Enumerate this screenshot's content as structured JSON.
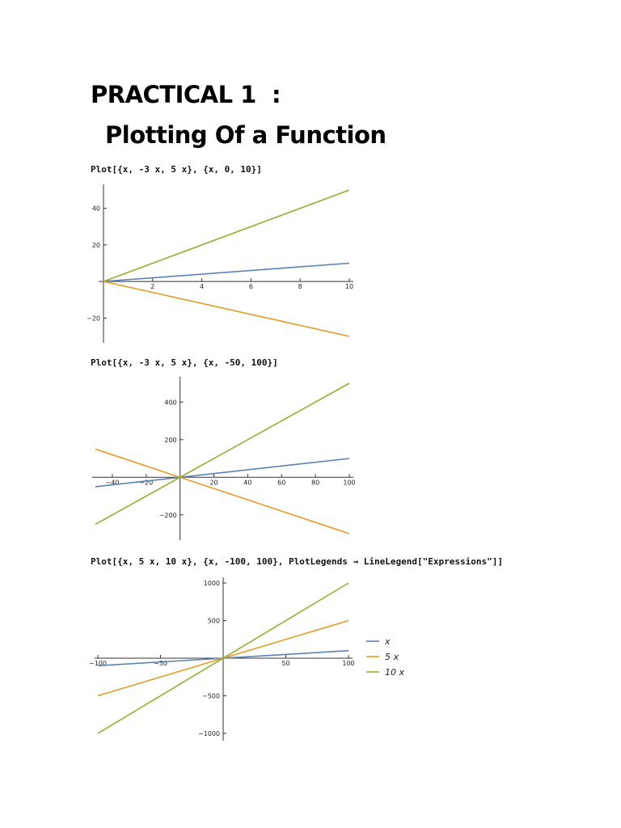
{
  "heading": {
    "line1": "PRACTICAL 1  :",
    "line2": "Plotting Of a Function"
  },
  "plots": [
    {
      "code": "Plot[{x, -3 x, 5 x}, {x, 0, 10}]"
    },
    {
      "code": "Plot[{x, -3 x, 5 x}, {x, -50, 100}]"
    },
    {
      "code": "Plot[{x, 5 x, 10 x}, {x, -100, 100}, PlotLegends → LineLegend[\"Expressions\"]]"
    }
  ],
  "colors": {
    "blue": "#5e81b5",
    "orange": "#e19c24",
    "green": "#8fb032",
    "axis": "#333333"
  },
  "chart_data": [
    {
      "type": "line",
      "title": "",
      "xlim": [
        0,
        10
      ],
      "ylim": [
        -30,
        50
      ],
      "xticks": [
        2,
        4,
        6,
        8,
        10
      ],
      "yticks": [
        -20,
        20,
        40
      ],
      "series": [
        {
          "expr": "x",
          "color": "#5e81b5",
          "points": [
            [
              0,
              0
            ],
            [
              10,
              10
            ]
          ]
        },
        {
          "expr": "-3 x",
          "color": "#e19c24",
          "points": [
            [
              0,
              0
            ],
            [
              10,
              -30
            ]
          ]
        },
        {
          "expr": "5 x",
          "color": "#8fb032",
          "points": [
            [
              0,
              0
            ],
            [
              10,
              50
            ]
          ]
        }
      ]
    },
    {
      "type": "line",
      "title": "",
      "xlim": [
        -50,
        100
      ],
      "ylim": [
        -300,
        500
      ],
      "xticks": [
        -40,
        -20,
        20,
        40,
        60,
        80,
        100
      ],
      "yticks": [
        -200,
        200,
        400
      ],
      "series": [
        {
          "expr": "x",
          "color": "#5e81b5",
          "points": [
            [
              -50,
              -50
            ],
            [
              100,
              100
            ]
          ]
        },
        {
          "expr": "-3 x",
          "color": "#e19c24",
          "points": [
            [
              -50,
              150
            ],
            [
              100,
              -300
            ]
          ]
        },
        {
          "expr": "5 x",
          "color": "#8fb032",
          "points": [
            [
              -50,
              -250
            ],
            [
              100,
              500
            ]
          ]
        }
      ]
    },
    {
      "type": "line",
      "title": "",
      "xlim": [
        -100,
        100
      ],
      "ylim": [
        -1000,
        1000
      ],
      "xticks": [
        -100,
        -50,
        50,
        100
      ],
      "yticks": [
        -1000,
        -500,
        500,
        1000
      ],
      "legend": {
        "position": "right",
        "entries": [
          "x",
          "5 x",
          "10 x"
        ]
      },
      "series": [
        {
          "expr": "x",
          "name": "x",
          "color": "#5e81b5",
          "points": [
            [
              -100,
              -100
            ],
            [
              100,
              100
            ]
          ]
        },
        {
          "expr": "5 x",
          "name": "5 x",
          "color": "#e19c24",
          "points": [
            [
              -100,
              -500
            ],
            [
              100,
              500
            ]
          ]
        },
        {
          "expr": "10 x",
          "name": "10 x",
          "color": "#8fb032",
          "points": [
            [
              -100,
              -1000
            ],
            [
              100,
              1000
            ]
          ]
        }
      ]
    }
  ]
}
